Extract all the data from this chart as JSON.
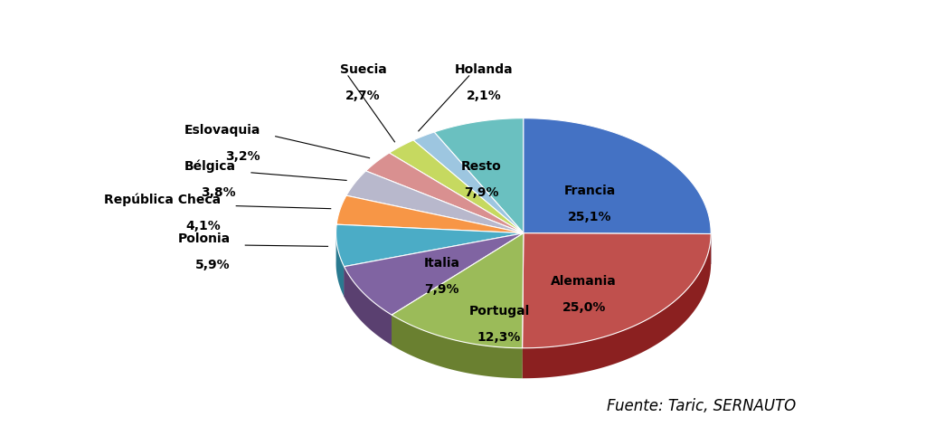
{
  "labels": [
    "Francia",
    "Alemania",
    "Portugal",
    "Italia",
    "Polonia",
    "República Checa",
    "Bélgica",
    "Eslovaquia",
    "Suecia",
    "Holanda",
    "Resto"
  ],
  "values": [
    25.1,
    25.0,
    12.3,
    7.9,
    5.9,
    4.1,
    3.8,
    3.2,
    2.7,
    2.1,
    7.9
  ],
  "colors": [
    "#4472C4",
    "#C0504D",
    "#9BBB59",
    "#8064A2",
    "#4BACC6",
    "#F79646",
    "#B8B8CC",
    "#D99090",
    "#C6D960",
    "#9DC6E0",
    "#6AC0C0"
  ],
  "dark_colors": [
    "#2A4A80",
    "#8B2020",
    "#6A8030",
    "#5A4070",
    "#2A7A90",
    "#C05010",
    "#888898",
    "#A06060",
    "#96A930",
    "#6090B0",
    "#3A9090"
  ],
  "source_text": "Fuente: Taric, SERNAUTO",
  "label_fontsize": 10,
  "source_fontsize": 12,
  "startangle": 90,
  "figsize": [
    10.24,
    4.82
  ],
  "dpi": 100
}
